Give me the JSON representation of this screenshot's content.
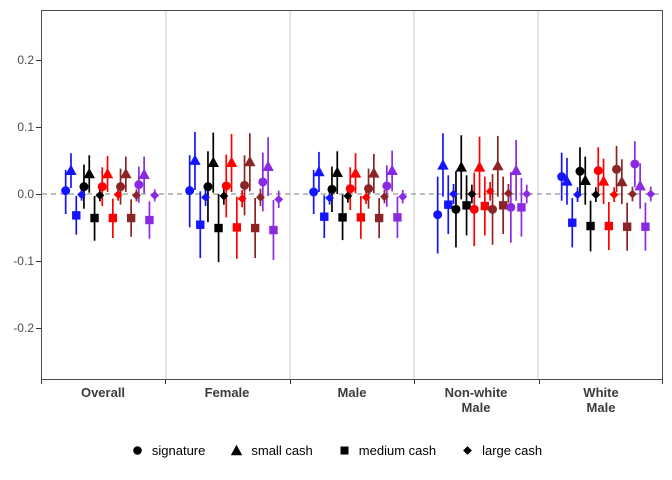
{
  "chart_data": {
    "type": "scatter",
    "subtype": "coefficient-pointrange-facets",
    "title": "",
    "xlabel": "",
    "ylabel": "",
    "ylim": [
      -0.277,
      0.274
    ],
    "y_ticks": [
      0.2,
      0.1,
      0.0,
      -0.1,
      -0.2
    ],
    "y_tick_labels": [
      "0.2",
      "0.1",
      "0.0",
      "-0.1",
      "-0.2"
    ],
    "zero_line": 0,
    "grid": false,
    "legend_position": "bottom",
    "shapes": [
      {
        "shape": "circle",
        "label": "signature"
      },
      {
        "shape": "triangle",
        "label": "small cash"
      },
      {
        "shape": "square",
        "label": "medium cash"
      },
      {
        "shape": "diamond",
        "label": "large cash"
      }
    ],
    "series_colors": [
      {
        "name": "blue",
        "color": "#1414FF"
      },
      {
        "name": "black",
        "color": "#000000"
      },
      {
        "name": "red",
        "color": "#FF0000"
      },
      {
        "name": "dark-red",
        "color": "#8B2424"
      },
      {
        "name": "purple",
        "color": "#8A2BE2"
      }
    ],
    "point_format": "[estimate, ci_low, ci_high] per shape in shapes order",
    "facets": [
      {
        "label": "Overall",
        "groups": [
          {
            "color": "blue",
            "points": [
              [
                0.005,
                -0.03,
                0.036
              ],
              [
                0.035,
                0.009,
                0.061
              ],
              [
                -0.032,
                -0.061,
                -0.003
              ],
              [
                -0.001,
                -0.01,
                0.008
              ]
            ]
          },
          {
            "color": "black",
            "points": [
              [
                0.011,
                -0.022,
                0.044
              ],
              [
                0.03,
                0.002,
                0.058
              ],
              [
                -0.036,
                -0.07,
                -0.003
              ],
              [
                -0.002,
                -0.011,
                0.007
              ]
            ]
          },
          {
            "color": "red",
            "points": [
              [
                0.011,
                -0.018,
                0.04
              ],
              [
                0.03,
                0.003,
                0.057
              ],
              [
                -0.036,
                -0.066,
                -0.007
              ],
              [
                -0.001,
                -0.01,
                0.008
              ]
            ]
          },
          {
            "color": "dark-red",
            "points": [
              [
                0.011,
                -0.016,
                0.038
              ],
              [
                0.03,
                0.003,
                0.056
              ],
              [
                -0.036,
                -0.064,
                -0.008
              ],
              [
                -0.002,
                -0.011,
                0.007
              ]
            ]
          },
          {
            "color": "purple",
            "points": [
              [
                0.014,
                -0.013,
                0.041
              ],
              [
                0.029,
                0.001,
                0.056
              ],
              [
                -0.039,
                -0.067,
                -0.011
              ],
              [
                -0.002,
                -0.011,
                0.007
              ]
            ]
          }
        ]
      },
      {
        "label": "Female",
        "groups": [
          {
            "color": "blue",
            "points": [
              [
                0.005,
                -0.05,
                0.058
              ],
              [
                0.05,
                0.006,
                0.093
              ],
              [
                -0.046,
                -0.096,
                0.004
              ],
              [
                -0.005,
                -0.018,
                0.008
              ]
            ]
          },
          {
            "color": "black",
            "points": [
              [
                0.011,
                -0.042,
                0.064
              ],
              [
                0.047,
                0.002,
                0.092
              ],
              [
                -0.051,
                -0.102,
                0.0
              ],
              [
                -0.003,
                -0.016,
                0.01
              ]
            ]
          },
          {
            "color": "red",
            "points": [
              [
                0.012,
                -0.035,
                0.059
              ],
              [
                0.047,
                0.003,
                0.09
              ],
              [
                -0.05,
                -0.097,
                -0.004
              ],
              [
                -0.007,
                -0.02,
                0.006
              ]
            ]
          },
          {
            "color": "dark-red",
            "points": [
              [
                0.013,
                -0.032,
                0.058
              ],
              [
                0.048,
                0.004,
                0.091
              ],
              [
                -0.051,
                -0.096,
                -0.006
              ],
              [
                -0.005,
                -0.018,
                0.008
              ]
            ]
          },
          {
            "color": "purple",
            "points": [
              [
                0.018,
                -0.026,
                0.062
              ],
              [
                0.041,
                -0.003,
                0.085
              ],
              [
                -0.054,
                -0.099,
                -0.009
              ],
              [
                -0.008,
                -0.021,
                0.005
              ]
            ]
          }
        ]
      },
      {
        "label": "Male",
        "groups": [
          {
            "color": "blue",
            "points": [
              [
                0.003,
                -0.03,
                0.036
              ],
              [
                0.033,
                0.003,
                0.063
              ],
              [
                -0.034,
                -0.066,
                -0.002
              ],
              [
                -0.006,
                -0.016,
                0.004
              ]
            ]
          },
          {
            "color": "black",
            "points": [
              [
                0.007,
                -0.027,
                0.041
              ],
              [
                0.032,
                0.0,
                0.064
              ],
              [
                -0.035,
                -0.069,
                -0.001
              ],
              [
                -0.003,
                -0.013,
                0.007
              ]
            ]
          },
          {
            "color": "red",
            "points": [
              [
                0.008,
                -0.024,
                0.04
              ],
              [
                0.031,
                0.001,
                0.061
              ],
              [
                -0.035,
                -0.067,
                -0.003
              ],
              [
                -0.005,
                -0.015,
                0.005
              ]
            ]
          },
          {
            "color": "dark-red",
            "points": [
              [
                0.008,
                -0.022,
                0.038
              ],
              [
                0.031,
                0.001,
                0.06
              ],
              [
                -0.036,
                -0.066,
                -0.006
              ],
              [
                -0.004,
                -0.014,
                0.006
              ]
            ]
          },
          {
            "color": "purple",
            "points": [
              [
                0.012,
                -0.019,
                0.043
              ],
              [
                0.035,
                0.004,
                0.065
              ],
              [
                -0.035,
                -0.066,
                -0.004
              ],
              [
                -0.004,
                -0.014,
                0.006
              ]
            ]
          }
        ]
      },
      {
        "label": "Non-white\nMale",
        "groups": [
          {
            "color": "blue",
            "points": [
              [
                -0.031,
                -0.089,
                0.026
              ],
              [
                0.043,
                -0.004,
                0.091
              ],
              [
                -0.016,
                -0.06,
                0.028
              ],
              [
                0.0,
                -0.015,
                0.015
              ]
            ]
          },
          {
            "color": "black",
            "points": [
              [
                -0.023,
                -0.08,
                0.034
              ],
              [
                0.04,
                -0.008,
                0.088
              ],
              [
                -0.017,
                -0.062,
                0.028
              ],
              [
                0.0,
                -0.014,
                0.014
              ]
            ]
          },
          {
            "color": "red",
            "points": [
              [
                -0.023,
                -0.078,
                0.032
              ],
              [
                0.04,
                -0.006,
                0.086
              ],
              [
                -0.018,
                -0.062,
                0.026
              ],
              [
                0.004,
                -0.01,
                0.018
              ]
            ]
          },
          {
            "color": "dark-red",
            "points": [
              [
                -0.023,
                -0.076,
                0.03
              ],
              [
                0.042,
                -0.004,
                0.087
              ],
              [
                -0.017,
                -0.06,
                0.026
              ],
              [
                0.001,
                -0.013,
                0.015
              ]
            ]
          },
          {
            "color": "purple",
            "points": [
              [
                -0.02,
                -0.073,
                0.033
              ],
              [
                0.035,
                -0.01,
                0.081
              ],
              [
                -0.02,
                -0.064,
                0.024
              ],
              [
                0.0,
                -0.014,
                0.014
              ]
            ]
          }
        ]
      },
      {
        "label": "White\nMale",
        "groups": [
          {
            "color": "blue",
            "points": [
              [
                0.026,
                -0.01,
                0.062
              ],
              [
                0.019,
                -0.016,
                0.054
              ],
              [
                -0.043,
                -0.08,
                -0.006
              ],
              [
                -0.001,
                -0.012,
                0.01
              ]
            ]
          },
          {
            "color": "black",
            "points": [
              [
                0.034,
                -0.002,
                0.07
              ],
              [
                0.02,
                -0.016,
                0.056
              ],
              [
                -0.048,
                -0.086,
                -0.01
              ],
              [
                -0.001,
                -0.012,
                0.01
              ]
            ]
          },
          {
            "color": "red",
            "points": [
              [
                0.035,
                0.0,
                0.07
              ],
              [
                0.019,
                -0.015,
                0.053
              ],
              [
                -0.048,
                -0.084,
                -0.012
              ],
              [
                -0.001,
                -0.012,
                0.01
              ]
            ]
          },
          {
            "color": "dark-red",
            "points": [
              [
                0.037,
                0.003,
                0.072
              ],
              [
                0.018,
                -0.015,
                0.052
              ],
              [
                -0.049,
                -0.085,
                -0.013
              ],
              [
                0.0,
                -0.011,
                0.011
              ]
            ]
          },
          {
            "color": "purple",
            "points": [
              [
                0.045,
                0.01,
                0.079
              ],
              [
                0.012,
                -0.022,
                0.046
              ],
              [
                -0.049,
                -0.085,
                -0.013
              ],
              [
                0.0,
                -0.011,
                0.011
              ]
            ]
          }
        ]
      }
    ]
  },
  "colors": {
    "background": "#FFFFFF",
    "panel_border": "#4D4D4D",
    "facet_separator": "#DBDBDB",
    "zero_line": "#969696",
    "axis_tick": "#333333",
    "axis_text": "#4D4D4D",
    "facet_label_text": "#3C3C3C",
    "legend_text": "#000000"
  }
}
